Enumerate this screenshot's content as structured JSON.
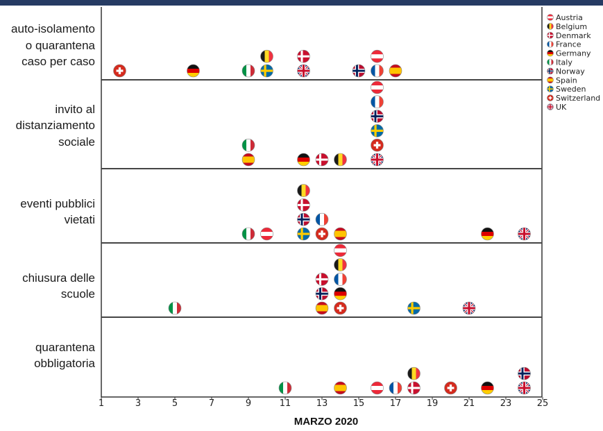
{
  "chart_data": {
    "type": "scatter",
    "xlabel": "MARZO 2020",
    "xlim": [
      1,
      25
    ],
    "xticks": [
      1,
      3,
      5,
      7,
      9,
      11,
      13,
      15,
      17,
      19,
      21,
      23,
      25
    ],
    "categories": [
      "auto-isolamento o quarantena caso per caso",
      "invito al distanziamento sociale",
      "eventi pubblici vietati",
      "chiusura delle scuole",
      "quarantena obbligatoria"
    ],
    "row_labels": [
      [
        "auto-isolamento",
        "o quarantena",
        "caso per caso"
      ],
      [
        "invito al",
        "distanziamento",
        "sociale"
      ],
      [
        "eventi pubblici",
        "vietati"
      ],
      [
        "chiusura delle",
        "scuole"
      ],
      [
        "quarantena",
        "obbligatoria"
      ]
    ],
    "legend": {
      "position": "right",
      "entries": [
        "Austria",
        "Belgium",
        "Denmark",
        "France",
        "Germany",
        "Italy",
        "Norway",
        "Spain",
        "Sweden",
        "Switzerland",
        "UK"
      ]
    },
    "points": [
      {
        "row": 0,
        "country": "Switzerland",
        "day": 2,
        "stack": 0
      },
      {
        "row": 0,
        "country": "Germany",
        "day": 6,
        "stack": 0
      },
      {
        "row": 0,
        "country": "Italy",
        "day": 9,
        "stack": 0
      },
      {
        "row": 0,
        "country": "Sweden",
        "day": 10,
        "stack": 0
      },
      {
        "row": 0,
        "country": "Belgium",
        "day": 10,
        "stack": 1
      },
      {
        "row": 0,
        "country": "UK",
        "day": 12,
        "stack": 0
      },
      {
        "row": 0,
        "country": "Denmark",
        "day": 12,
        "stack": 1
      },
      {
        "row": 0,
        "country": "Norway",
        "day": 15,
        "stack": 0
      },
      {
        "row": 0,
        "country": "France",
        "day": 16,
        "stack": 0
      },
      {
        "row": 0,
        "country": "Austria",
        "day": 16,
        "stack": 1
      },
      {
        "row": 0,
        "country": "Spain",
        "day": 17,
        "stack": 0
      },
      {
        "row": 1,
        "country": "Spain",
        "day": 9,
        "stack": 0
      },
      {
        "row": 1,
        "country": "Italy",
        "day": 9,
        "stack": 1
      },
      {
        "row": 1,
        "country": "Germany",
        "day": 12,
        "stack": 0
      },
      {
        "row": 1,
        "country": "Denmark",
        "day": 13,
        "stack": 0
      },
      {
        "row": 1,
        "country": "Belgium",
        "day": 14,
        "stack": 0
      },
      {
        "row": 1,
        "country": "UK",
        "day": 16,
        "stack": 0
      },
      {
        "row": 1,
        "country": "Switzerland",
        "day": 16,
        "stack": 1
      },
      {
        "row": 1,
        "country": "Sweden",
        "day": 16,
        "stack": 2
      },
      {
        "row": 1,
        "country": "Norway",
        "day": 16,
        "stack": 3
      },
      {
        "row": 1,
        "country": "France",
        "day": 16,
        "stack": 4
      },
      {
        "row": 1,
        "country": "Austria",
        "day": 16,
        "stack": 5
      },
      {
        "row": 2,
        "country": "Italy",
        "day": 9,
        "stack": 0
      },
      {
        "row": 2,
        "country": "Austria",
        "day": 10,
        "stack": 0
      },
      {
        "row": 2,
        "country": "Sweden",
        "day": 12,
        "stack": 0
      },
      {
        "row": 2,
        "country": "Norway",
        "day": 12,
        "stack": 1
      },
      {
        "row": 2,
        "country": "Denmark",
        "day": 12,
        "stack": 2
      },
      {
        "row": 2,
        "country": "Belgium",
        "day": 12,
        "stack": 3
      },
      {
        "row": 2,
        "country": "Switzerland",
        "day": 13,
        "stack": 0
      },
      {
        "row": 2,
        "country": "France",
        "day": 13,
        "stack": 1
      },
      {
        "row": 2,
        "country": "Spain",
        "day": 14,
        "stack": 0
      },
      {
        "row": 2,
        "country": "Germany",
        "day": 22,
        "stack": 0
      },
      {
        "row": 2,
        "country": "UK",
        "day": 24,
        "stack": 0
      },
      {
        "row": 3,
        "country": "Italy",
        "day": 5,
        "stack": 0
      },
      {
        "row": 3,
        "country": "Spain",
        "day": 13,
        "stack": 0
      },
      {
        "row": 3,
        "country": "Norway",
        "day": 13,
        "stack": 1
      },
      {
        "row": 3,
        "country": "Denmark",
        "day": 13,
        "stack": 2
      },
      {
        "row": 3,
        "country": "Switzerland",
        "day": 14,
        "stack": 0
      },
      {
        "row": 3,
        "country": "Germany",
        "day": 14,
        "stack": 1
      },
      {
        "row": 3,
        "country": "France",
        "day": 14,
        "stack": 2
      },
      {
        "row": 3,
        "country": "Belgium",
        "day": 14,
        "stack": 3
      },
      {
        "row": 3,
        "country": "Austria",
        "day": 14,
        "stack": 4
      },
      {
        "row": 3,
        "country": "Sweden",
        "day": 18,
        "stack": 0
      },
      {
        "row": 3,
        "country": "UK",
        "day": 21,
        "stack": 0
      },
      {
        "row": 4,
        "country": "Italy",
        "day": 11,
        "stack": 0
      },
      {
        "row": 4,
        "country": "Spain",
        "day": 14,
        "stack": 0
      },
      {
        "row": 4,
        "country": "Austria",
        "day": 16,
        "stack": 0
      },
      {
        "row": 4,
        "country": "France",
        "day": 17,
        "stack": 0
      },
      {
        "row": 4,
        "country": "Denmark",
        "day": 18,
        "stack": 0
      },
      {
        "row": 4,
        "country": "Belgium",
        "day": 18,
        "stack": 1
      },
      {
        "row": 4,
        "country": "Switzerland",
        "day": 20,
        "stack": 0
      },
      {
        "row": 4,
        "country": "Germany",
        "day": 22,
        "stack": 0
      },
      {
        "row": 4,
        "country": "UK",
        "day": 24,
        "stack": 0
      },
      {
        "row": 4,
        "country": "Norway",
        "day": 24,
        "stack": 1
      }
    ],
    "flag_colors": {
      "Austria": [
        "#ed2939",
        "#ffffff",
        "#ed2939"
      ],
      "Belgium": [
        "#1a1a1a",
        "#fdda24",
        "#ef3340"
      ],
      "Denmark": [
        "#c8102e",
        "#ffffff"
      ],
      "France": [
        "#0055a4",
        "#ffffff",
        "#ef4135"
      ],
      "Germany": [
        "#111111",
        "#dd0000",
        "#ffce00"
      ],
      "Italy": [
        "#009246",
        "#ffffff",
        "#ce2b37"
      ],
      "Norway": [
        "#ba0c2f",
        "#ffffff",
        "#00205b"
      ],
      "Spain": [
        "#c60b1e",
        "#ffc400",
        "#c60b1e"
      ],
      "Sweden": [
        "#006aa7",
        "#fecc00"
      ],
      "Switzerland": [
        "#d52b1e",
        "#ffffff"
      ],
      "UK": [
        "#012169",
        "#ffffff",
        "#c8102e"
      ]
    },
    "grid": false,
    "bar_color": "#263b63"
  }
}
